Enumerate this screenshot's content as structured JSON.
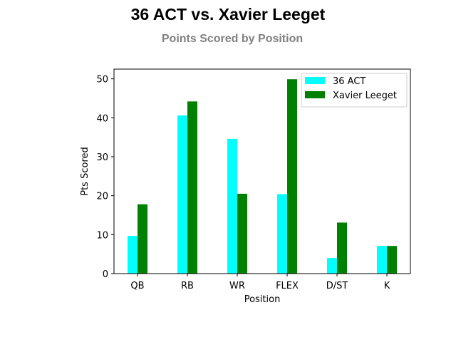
{
  "chart_data": {
    "type": "bar",
    "title": "36 ACT vs. Xavier Leeget",
    "subtitle": "Points Scored by Position",
    "xlabel": "Position",
    "ylabel": "Pts Scored",
    "categories": [
      "QB",
      "RB",
      "WR",
      "FLEX",
      "D/ST",
      "K"
    ],
    "ylim": [
      0,
      52.5
    ],
    "yticks": [
      0,
      10,
      20,
      30,
      40,
      50
    ],
    "grid": false,
    "legend_position": "top-right",
    "series": [
      {
        "name": "36 ACT",
        "color": "#00ffff",
        "values": [
          9.7,
          40.6,
          34.6,
          20.4,
          4.0,
          7.1
        ]
      },
      {
        "name": "Xavier Leeget",
        "color": "#008000",
        "values": [
          17.8,
          44.2,
          20.5,
          49.9,
          13.1,
          7.1
        ]
      }
    ],
    "title_color": "#000000",
    "subtitle_color": "#808080"
  }
}
